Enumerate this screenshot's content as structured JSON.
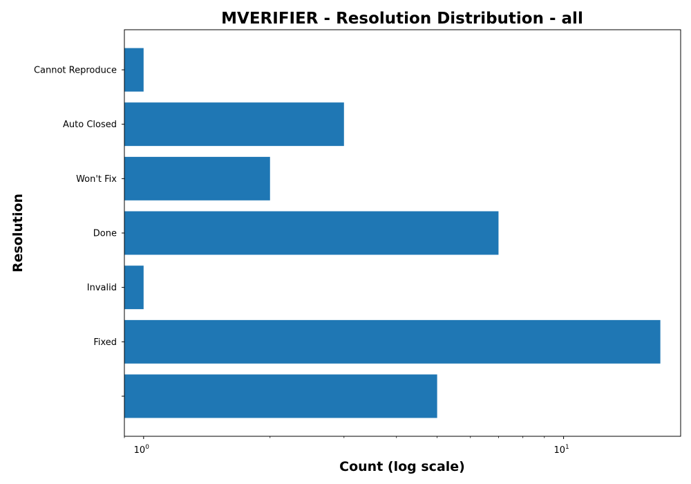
{
  "chart_data": {
    "type": "bar",
    "orientation": "horizontal",
    "title": "MVERIFIER - Resolution Distribution - all",
    "xlabel": "Count (log scale)",
    "ylabel": "Resolution",
    "x_scale": "log",
    "xlim": [
      0.9,
      19
    ],
    "xticks": [
      {
        "base": "10",
        "exp": "0",
        "value": 1
      },
      {
        "base": "10",
        "exp": "1",
        "value": 10
      }
    ],
    "categories": [
      "",
      "Fixed",
      "Invalid",
      "Done",
      "Won't Fix",
      "Auto Closed",
      "Cannot Reproduce"
    ],
    "values": [
      5,
      17,
      1,
      7,
      2,
      3,
      1
    ],
    "bar_color": "#1f77b4",
    "grid": false
  }
}
